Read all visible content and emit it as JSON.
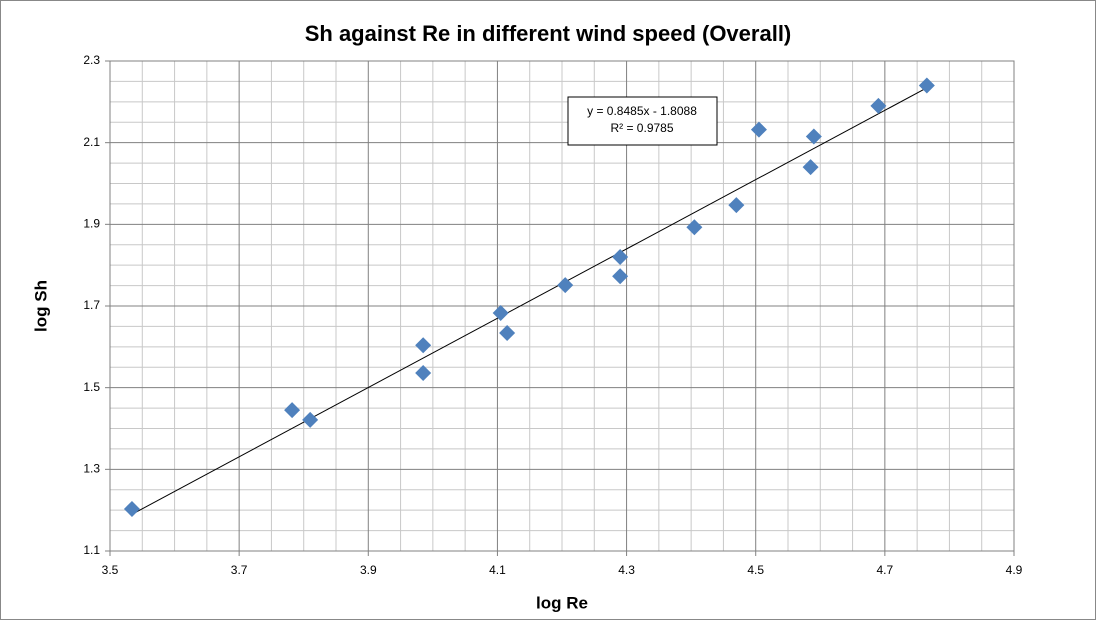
{
  "chart_data": {
    "type": "scatter",
    "title": "Sh against Re in different wind speed (Overall)",
    "xlabel": "log Re",
    "ylabel": "log Sh",
    "x": [
      3.534,
      3.782,
      3.81,
      3.985,
      3.985,
      4.105,
      4.115,
      4.205,
      4.29,
      4.29,
      4.405,
      4.47,
      4.505,
      4.585,
      4.59,
      4.69,
      4.765
    ],
    "values": [
      1.203,
      1.445,
      1.421,
      1.604,
      1.536,
      1.683,
      1.634,
      1.751,
      1.82,
      1.773,
      1.893,
      1.947,
      2.132,
      2.04,
      2.115,
      2.19,
      2.24
    ],
    "color": "#4f81bd",
    "xlim": [
      3.5,
      4.9
    ],
    "xticks": [
      3.5,
      3.7,
      3.9,
      4.1,
      4.3,
      4.5,
      4.7,
      4.9
    ],
    "ylim": [
      1.1,
      2.3
    ],
    "yticks": [
      1.1,
      1.3,
      1.5,
      1.7,
      1.9,
      2.1,
      2.3
    ],
    "grid": true,
    "minor_grid": true,
    "trendline": {
      "slope": 0.8485,
      "intercept": -1.8088,
      "equation": "y = 0.8485x - 1.8088",
      "r_squared": "R² = 0.9785"
    }
  }
}
